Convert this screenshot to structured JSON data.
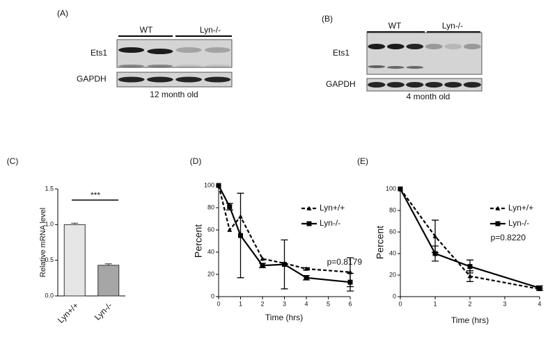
{
  "blots": [
    {
      "panel": "(A)",
      "groups": [
        "WT",
        "Lyn-/-"
      ],
      "rows": [
        "Ets1",
        "GAPDH"
      ],
      "caption": "12 month old"
    },
    {
      "panel": "(B)",
      "groups": [
        "WT",
        "Lyn-/-"
      ],
      "rows": [
        "Ets1",
        "GAPDH"
      ],
      "caption": "4 month old"
    }
  ],
  "chart_data": [
    {
      "type": "bar",
      "panel": "(C)",
      "ylabel": "Relative mRNA level",
      "categories": [
        "Lyn+/+",
        "Lyn-/-"
      ],
      "values": [
        1.0,
        0.43
      ],
      "errors": [
        0.02,
        0.02
      ],
      "colors": [
        "#e6e6e6",
        "#a6a6a6"
      ],
      "annotation": "***",
      "ylim": [
        0,
        1.5
      ],
      "yticks": [
        {
          "value": 0,
          "label": "0.0"
        },
        0.5,
        {
          "value": 1,
          "label": "1.0"
        },
        1.5
      ]
    },
    {
      "type": "line",
      "panel": "(D)",
      "xlabel": "Time (hrs)",
      "ylabel": "Percent",
      "annotation": "p=0.8179",
      "x": [
        0,
        0.5,
        1,
        2,
        3,
        4,
        6
      ],
      "series": [
        {
          "name": "Lyn+/+",
          "color": "#000000",
          "marker": "triangle",
          "dashed": true,
          "values": [
            100,
            60,
            72,
            34,
            30,
            25,
            22
          ],
          "errors": [
            0,
            0,
            0,
            0,
            0,
            1,
            13
          ]
        },
        {
          "name": "Lyn-/-",
          "color": "#000000",
          "marker": "square",
          "dashed": false,
          "values": [
            100,
            81,
            55,
            28,
            29,
            17,
            13
          ],
          "errors": [
            0,
            3,
            38,
            2,
            22,
            2,
            8
          ]
        }
      ],
      "xlim": [
        0,
        6
      ],
      "xticks": [
        0,
        1,
        2,
        3,
        4,
        5,
        6
      ],
      "ylim": [
        0,
        100
      ],
      "yticks": [
        0,
        20,
        40,
        60,
        80,
        100
      ]
    },
    {
      "type": "line",
      "panel": "(E)",
      "xlabel": "Time (hrs)",
      "ylabel": "Percent",
      "annotation": "p=0.8220",
      "x": [
        0,
        1,
        2,
        4
      ],
      "series": [
        {
          "name": "Lyn+/+",
          "color": "#000000",
          "marker": "triangle",
          "dashed": true,
          "values": [
            100,
            56,
            19,
            7
          ],
          "errors": [
            0,
            15,
            5,
            1
          ]
        },
        {
          "name": "Lyn-/-",
          "color": "#000000",
          "marker": "square",
          "dashed": false,
          "values": [
            100,
            40,
            28,
            8
          ],
          "errors": [
            0,
            7,
            6,
            2
          ]
        }
      ],
      "xlim": [
        0,
        4
      ],
      "xticks": [
        0,
        1,
        2,
        3,
        4
      ],
      "ylim": [
        0,
        100
      ],
      "yticks": [
        0,
        20,
        40,
        60,
        80,
        100
      ]
    }
  ]
}
